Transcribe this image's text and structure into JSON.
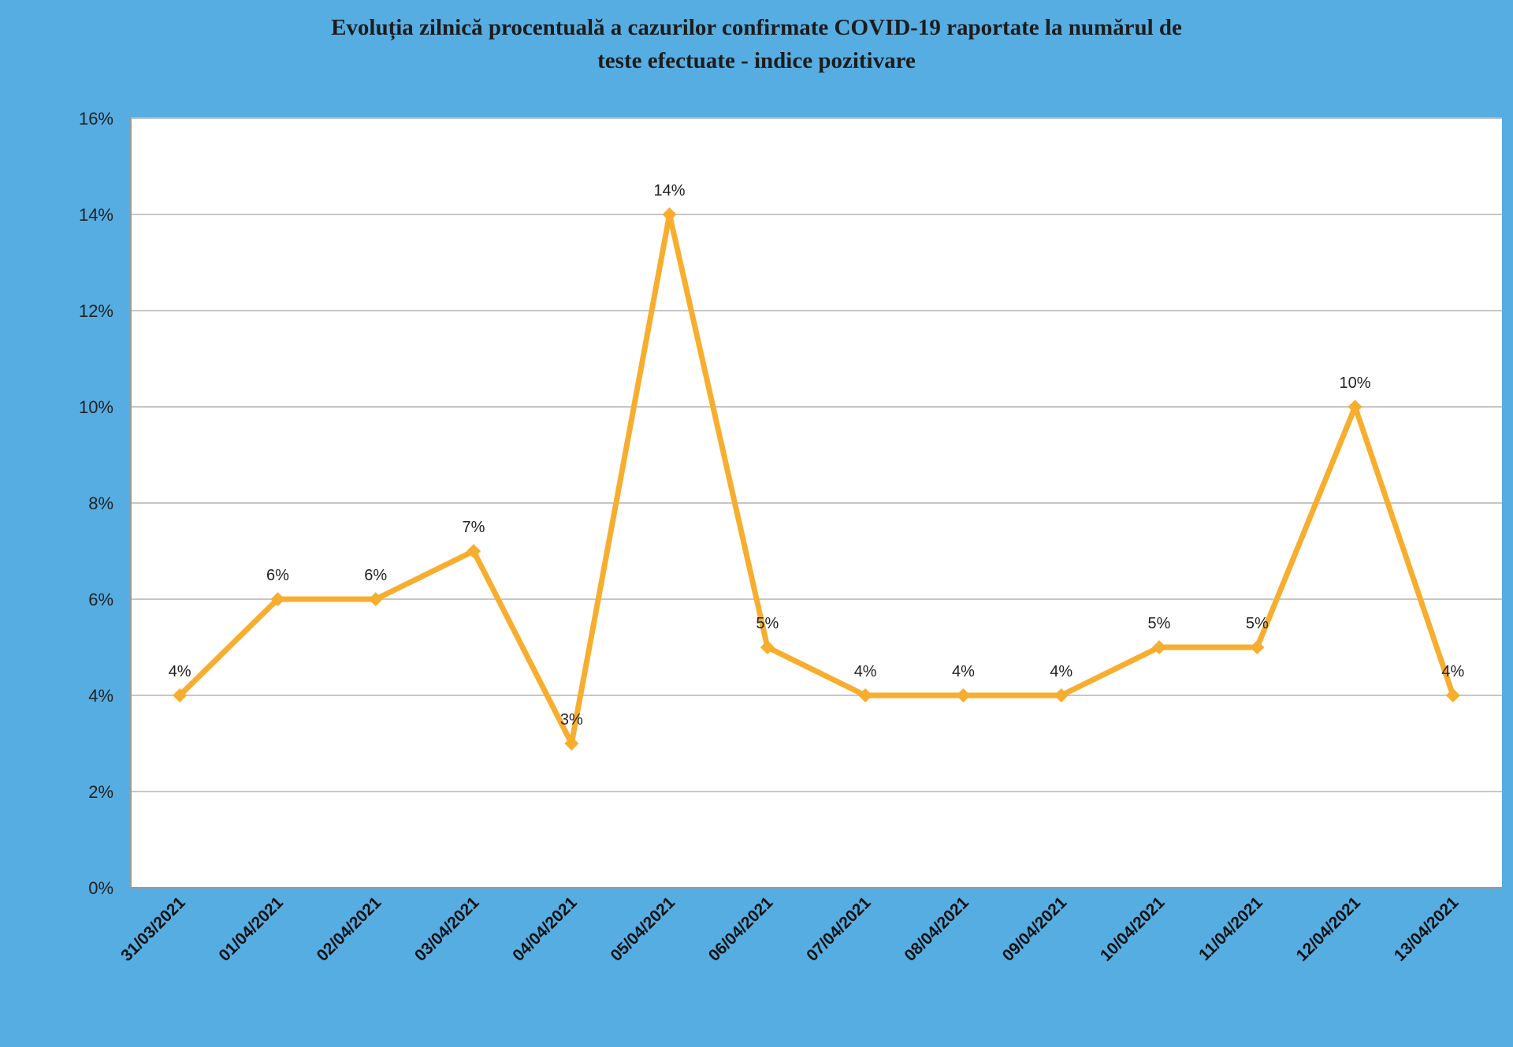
{
  "colors": {
    "background": "#56ADE2",
    "plot_area": "#FFFFFF",
    "line": "#F7AE2F",
    "gridline": "#C6C6C6"
  },
  "chart_data": {
    "type": "line",
    "title_lines": [
      "Evoluția zilnică procentuală a cazurilor confirmate COVID-19 raportate la numărul de",
      "teste efectuate - indice pozitivare"
    ],
    "xlabel": "",
    "ylabel": "",
    "ylim": [
      0,
      16
    ],
    "ytick_values": [
      0,
      2,
      4,
      6,
      8,
      10,
      12,
      14,
      16
    ],
    "ytick_labels": [
      "0%",
      "2%",
      "4%",
      "6%",
      "8%",
      "10%",
      "12%",
      "14%",
      "16%"
    ],
    "grid": "horizontal",
    "legend": "none",
    "categories": [
      "31/03/2021",
      "01/04/2021",
      "02/04/2021",
      "03/04/2021",
      "04/04/2021",
      "05/04/2021",
      "06/04/2021",
      "07/04/2021",
      "08/04/2021",
      "09/04/2021",
      "10/04/2021",
      "11/04/2021",
      "12/04/2021",
      "13/04/2021"
    ],
    "series": [
      {
        "values": [
          4,
          6,
          6,
          7,
          3,
          14,
          5,
          4,
          4,
          4,
          5,
          5,
          10,
          4
        ],
        "data_labels": [
          "4%",
          "6%",
          "6%",
          "7%",
          "3%",
          "14%",
          "5%",
          "4%",
          "4%",
          "4%",
          "5%",
          "5%",
          "10%",
          "4%"
        ]
      }
    ]
  }
}
